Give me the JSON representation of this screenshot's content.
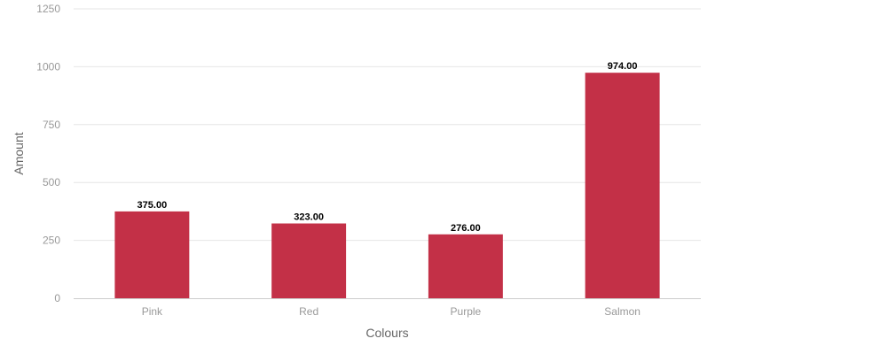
{
  "chart_data": {
    "type": "bar",
    "categories": [
      "Pink",
      "Red",
      "Purple",
      "Salmon"
    ],
    "values": [
      375,
      323,
      276,
      974
    ],
    "data_labels": [
      "375.00",
      "323.00",
      "276.00",
      "974.00"
    ],
    "xlabel": "Colours",
    "ylabel": "Amount",
    "ylim": [
      0,
      1250
    ],
    "yticks": [
      0,
      250,
      500,
      750,
      1000,
      1250
    ],
    "grid": true,
    "bar_color": "#c33047"
  }
}
